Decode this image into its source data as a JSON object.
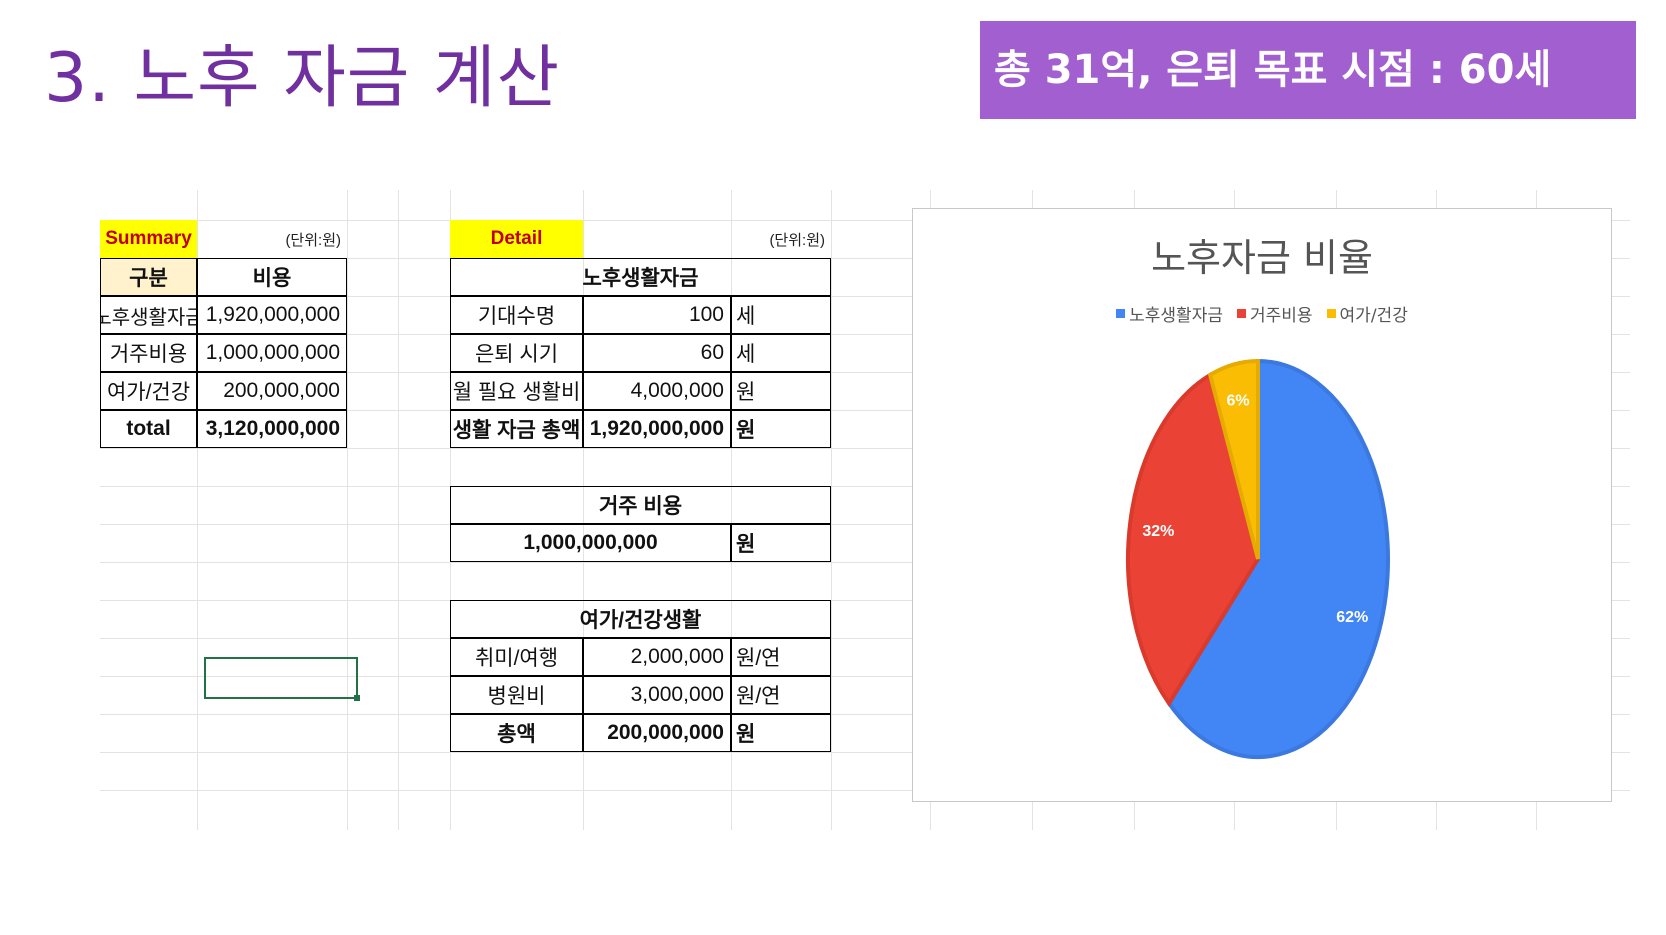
{
  "title": "3. 노후 자금 계산",
  "banner": "총 31억, 은퇴 목표 시점  : 60세",
  "summary": {
    "label": "Summary",
    "unit_note": "(단위:원)",
    "headers": [
      "구분",
      "비용"
    ],
    "rows": [
      {
        "name": "노후생활자금",
        "value": "1,920,000,000"
      },
      {
        "name": "거주비용",
        "value": "1,000,000,000"
      },
      {
        "name": "여가/건강",
        "value": "200,000,000"
      }
    ],
    "total_label": "total",
    "total_value": "3,120,000,000"
  },
  "detail": {
    "label": "Detail",
    "unit_note": "(단위:원)",
    "living": {
      "header": "노후생활자금",
      "rows": [
        {
          "name": "기대수명",
          "value": "100",
          "unit": "세"
        },
        {
          "name": "은퇴 시기",
          "value": "60",
          "unit": "세"
        },
        {
          "name": "월 필요 생활비",
          "value": "4,000,000",
          "unit": "원"
        }
      ],
      "total": {
        "name": "생활 자금 총액",
        "value": "1,920,000,000",
        "unit": "원"
      }
    },
    "housing": {
      "header": "거주 비용",
      "value": "1,000,000,000",
      "unit": "원"
    },
    "leisure": {
      "header": "여가/건강생활",
      "rows": [
        {
          "name": "취미/여행",
          "value": "2,000,000",
          "unit": "원/연"
        },
        {
          "name": "병원비",
          "value": "3,000,000",
          "unit": "원/연"
        }
      ],
      "total": {
        "name": "총액",
        "value": "200,000,000",
        "unit": "원"
      }
    }
  },
  "chart_data": {
    "type": "pie",
    "title": "노후자금 비율",
    "categories": [
      "노후생활자금",
      "거주비용",
      "여가/건강"
    ],
    "values": [
      62,
      32,
      6
    ],
    "labels": [
      "62%",
      "32%",
      "6%"
    ],
    "colors": [
      "#4285f4",
      "#ea4335",
      "#fbbc04"
    ],
    "legend": "top"
  }
}
